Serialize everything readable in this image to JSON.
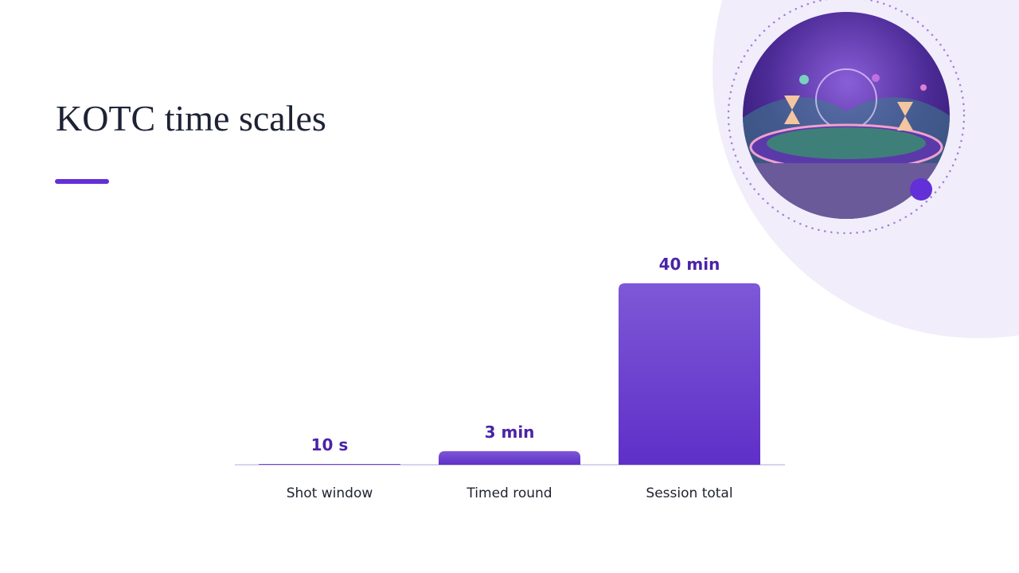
{
  "title": "KOTC time scales",
  "chart_data": {
    "type": "bar",
    "categories": [
      "Shot window",
      "Timed round",
      "Session total"
    ],
    "values": [
      10,
      180,
      2400
    ],
    "value_labels": [
      "10 s",
      "3 min",
      "40 min"
    ],
    "ylim": [
      0,
      2400
    ],
    "color": "#6a3bd0"
  }
}
